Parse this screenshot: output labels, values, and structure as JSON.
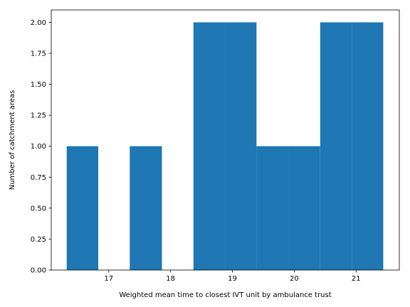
{
  "chart_data": {
    "type": "bar",
    "subtype": "histogram",
    "bins": [
      {
        "start": 16.32,
        "end": 16.83,
        "count": 1
      },
      {
        "start": 16.83,
        "end": 17.34,
        "count": 0
      },
      {
        "start": 17.34,
        "end": 17.86,
        "count": 1
      },
      {
        "start": 17.86,
        "end": 18.37,
        "count": 0
      },
      {
        "start": 18.37,
        "end": 18.88,
        "count": 2
      },
      {
        "start": 18.88,
        "end": 19.39,
        "count": 2
      },
      {
        "start": 19.39,
        "end": 19.91,
        "count": 1
      },
      {
        "start": 19.91,
        "end": 20.42,
        "count": 1
      },
      {
        "start": 20.42,
        "end": 20.93,
        "count": 2
      },
      {
        "start": 20.93,
        "end": 21.44,
        "count": 2
      }
    ],
    "bar_color": "#1f77b4",
    "title": "",
    "xlabel": "Weighted mean time to closest IVT unit by ambulance trust",
    "ylabel": "Number of catchment areas",
    "xlim": [
      16.07,
      21.7
    ],
    "ylim": [
      0,
      2.1
    ],
    "xticks": [
      17,
      18,
      19,
      20,
      21
    ],
    "xtick_labels": [
      "17",
      "18",
      "19",
      "20",
      "21"
    ],
    "yticks": [
      0,
      0.25,
      0.5,
      0.75,
      1.0,
      1.25,
      1.5,
      1.75,
      2.0
    ],
    "ytick_labels": [
      "0.00",
      "0.25",
      "0.50",
      "0.75",
      "1.00",
      "1.25",
      "1.50",
      "1.75",
      "2.00"
    ],
    "grid": false,
    "legend": "none"
  }
}
